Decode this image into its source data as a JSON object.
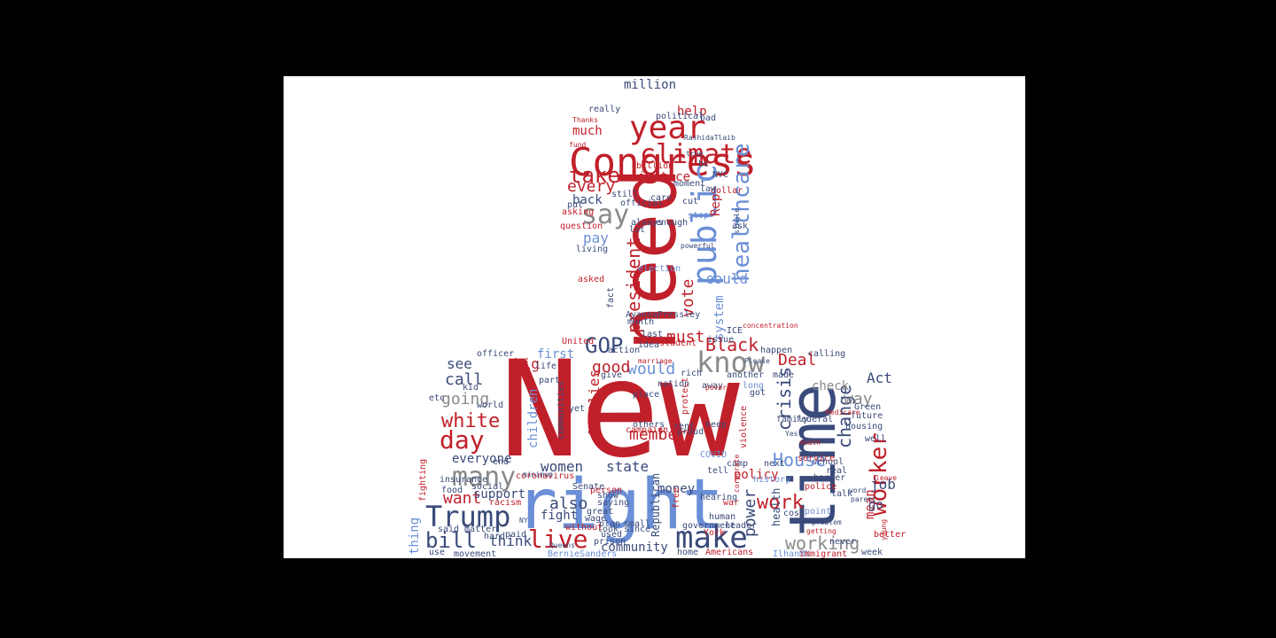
{
  "colors": {
    "background": "#000000",
    "canvas": "#ffffff",
    "red": "#c0202a",
    "blue": "#6a8fd6",
    "navy": "#3a4a7a",
    "gray": "#8a8a8a"
  },
  "words": [
    {
      "text": "New",
      "color": "red"
    },
    {
      "text": "right",
      "color": "blue"
    },
    {
      "text": "need",
      "color": "red"
    },
    {
      "text": "time",
      "color": "navy"
    },
    {
      "text": "Congress",
      "color": "red"
    },
    {
      "text": "year",
      "color": "red"
    },
    {
      "text": "climate",
      "color": "red"
    },
    {
      "text": "public",
      "color": "blue"
    },
    {
      "text": "healthcare",
      "color": "blue"
    },
    {
      "text": "know",
      "color": "gray"
    },
    {
      "text": "make",
      "color": "navy"
    },
    {
      "text": "many",
      "color": "gray"
    },
    {
      "text": "Trump",
      "color": "navy"
    },
    {
      "text": "day",
      "color": "red"
    },
    {
      "text": "live",
      "color": "red"
    },
    {
      "text": "work",
      "color": "red"
    },
    {
      "text": "worker",
      "color": "red"
    },
    {
      "text": "say",
      "color": "gray"
    },
    {
      "text": "take",
      "color": "red"
    },
    {
      "text": "every",
      "color": "red"
    },
    {
      "text": "GOP",
      "color": "navy"
    },
    {
      "text": "Black",
      "color": "red"
    },
    {
      "text": "Deal",
      "color": "red"
    },
    {
      "text": "House",
      "color": "blue"
    },
    {
      "text": "bill",
      "color": "navy"
    },
    {
      "text": "vote",
      "color": "red"
    },
    {
      "text": "president",
      "color": "red"
    },
    {
      "text": "must",
      "color": "red"
    },
    {
      "text": "would",
      "color": "blue"
    },
    {
      "text": "good",
      "color": "red"
    },
    {
      "text": "white",
      "color": "red"
    },
    {
      "text": "member",
      "color": "red"
    },
    {
      "text": "crisis",
      "color": "navy"
    },
    {
      "text": "change",
      "color": "navy"
    },
    {
      "text": "going",
      "color": "gray"
    },
    {
      "text": "call",
      "color": "navy"
    },
    {
      "text": "see",
      "color": "navy"
    },
    {
      "text": "women",
      "color": "navy"
    },
    {
      "text": "state",
      "color": "navy"
    },
    {
      "text": "also",
      "color": "navy"
    },
    {
      "text": "want",
      "color": "red"
    },
    {
      "text": "working",
      "color": "gray"
    },
    {
      "text": "power",
      "color": "navy"
    },
    {
      "text": "way",
      "color": "gray"
    },
    {
      "text": "pay",
      "color": "blue"
    },
    {
      "text": "back",
      "color": "navy"
    },
    {
      "text": "justice",
      "color": "red"
    },
    {
      "text": "much",
      "color": "red"
    },
    {
      "text": "million",
      "color": "navy"
    },
    {
      "text": "help",
      "color": "red"
    },
    {
      "text": "could",
      "color": "blue"
    },
    {
      "text": "system",
      "color": "blue"
    },
    {
      "text": "first",
      "color": "blue"
    },
    {
      "text": "families",
      "color": "red"
    },
    {
      "text": "children",
      "color": "blue"
    },
    {
      "text": "everyone",
      "color": "navy"
    },
    {
      "text": "support",
      "color": "navy"
    },
    {
      "text": "community",
      "color": "navy"
    },
    {
      "text": "think",
      "color": "navy"
    },
    {
      "text": "policy",
      "color": "red"
    },
    {
      "text": "Act",
      "color": "navy"
    },
    {
      "text": "job",
      "color": "navy"
    },
    {
      "text": "mean",
      "color": "red"
    },
    {
      "text": "check",
      "color": "gray"
    },
    {
      "text": "go",
      "color": "navy"
    },
    {
      "text": "money",
      "color": "navy"
    },
    {
      "text": "fight",
      "color": "navy"
    },
    {
      "text": "thing",
      "color": "blue"
    },
    {
      "text": "big",
      "color": "red"
    },
    {
      "text": "Rep",
      "color": "red"
    },
    {
      "text": "ICE",
      "color": "navy"
    },
    {
      "text": "AyannaPressley",
      "color": "navy"
    },
    {
      "text": "United",
      "color": "red"
    },
    {
      "text": "election",
      "color": "blue"
    },
    {
      "text": "coronavirus",
      "color": "red"
    },
    {
      "text": "Republican",
      "color": "navy"
    },
    {
      "text": "health",
      "color": "navy"
    },
    {
      "text": "housing",
      "color": "navy"
    },
    {
      "text": "police",
      "color": "red"
    },
    {
      "text": "COVID",
      "color": "blue"
    },
    {
      "text": "Green",
      "color": "navy"
    },
    {
      "text": "future",
      "color": "navy"
    },
    {
      "text": "history",
      "color": "blue"
    },
    {
      "text": "wage",
      "color": "navy"
    },
    {
      "text": "great",
      "color": "navy"
    },
    {
      "text": "NYC",
      "color": "navy"
    },
    {
      "text": "billion",
      "color": "red"
    },
    {
      "text": "Americans",
      "color": "red"
    },
    {
      "text": "BernieSanders",
      "color": "blue"
    },
    {
      "text": "IlhanMN",
      "color": "blue"
    },
    {
      "text": "immigrant",
      "color": "red"
    },
    {
      "text": "better",
      "color": "red"
    },
    {
      "text": "week",
      "color": "navy"
    },
    {
      "text": "well",
      "color": "navy"
    },
    {
      "text": "talk",
      "color": "navy"
    },
    {
      "text": "never",
      "color": "navy"
    },
    {
      "text": "cost",
      "color": "navy"
    },
    {
      "text": "point",
      "color": "blue"
    },
    {
      "text": "family",
      "color": "navy"
    },
    {
      "text": "federal",
      "color": "navy"
    },
    {
      "text": "school",
      "color": "navy"
    },
    {
      "text": "border",
      "color": "navy"
    },
    {
      "text": "real",
      "color": "navy"
    },
    {
      "text": "service",
      "color": "red"
    },
    {
      "text": "calling",
      "color": "navy"
    },
    {
      "text": "happen",
      "color": "navy"
    },
    {
      "text": "made",
      "color": "navy"
    },
    {
      "text": "next",
      "color": "navy"
    },
    {
      "text": "long",
      "color": "blue"
    },
    {
      "text": "got",
      "color": "navy"
    },
    {
      "text": "keep",
      "color": "navy"
    },
    {
      "text": "tell",
      "color": "navy"
    },
    {
      "text": "proud",
      "color": "navy"
    },
    {
      "text": "away",
      "color": "navy"
    },
    {
      "text": "another",
      "color": "navy"
    },
    {
      "text": "violence",
      "color": "red"
    },
    {
      "text": "rent",
      "color": "navy"
    },
    {
      "text": "protect",
      "color": "red"
    },
    {
      "text": "nation",
      "color": "navy"
    },
    {
      "text": "place",
      "color": "navy"
    },
    {
      "text": "others",
      "color": "navy"
    },
    {
      "text": "free",
      "color": "red"
    },
    {
      "text": "war",
      "color": "red"
    },
    {
      "text": "hearing",
      "color": "navy"
    },
    {
      "text": "camp",
      "color": "navy"
    },
    {
      "text": "government",
      "color": "navy"
    },
    {
      "text": "human",
      "color": "navy"
    },
    {
      "text": "leader",
      "color": "navy"
    },
    {
      "text": "York",
      "color": "red"
    },
    {
      "text": "home",
      "color": "navy"
    },
    {
      "text": "since",
      "color": "navy"
    },
    {
      "text": "plan",
      "color": "navy"
    },
    {
      "text": "used",
      "color": "navy"
    },
    {
      "text": "look",
      "color": "navy"
    },
    {
      "text": "prison",
      "color": "navy"
    },
    {
      "text": "without",
      "color": "red"
    },
    {
      "text": "small",
      "color": "navy"
    },
    {
      "text": "person",
      "color": "red"
    },
    {
      "text": "saying",
      "color": "navy"
    },
    {
      "text": "Senate",
      "color": "navy"
    },
    {
      "text": "show",
      "color": "navy"
    },
    {
      "text": "movement",
      "color": "navy"
    },
    {
      "text": "hard",
      "color": "navy"
    },
    {
      "text": "paid",
      "color": "navy"
    },
    {
      "text": "said",
      "color": "navy"
    },
    {
      "text": "matter",
      "color": "navy"
    },
    {
      "text": "fighting",
      "color": "red"
    },
    {
      "text": "use",
      "color": "navy"
    },
    {
      "text": "food",
      "color": "navy"
    },
    {
      "text": "social",
      "color": "navy"
    },
    {
      "text": "end",
      "color": "navy"
    },
    {
      "text": "kid",
      "color": "navy"
    },
    {
      "text": "etc",
      "color": "navy"
    },
    {
      "text": "world",
      "color": "navy"
    },
    {
      "text": "officer",
      "color": "navy"
    },
    {
      "text": "racism",
      "color": "red"
    },
    {
      "text": "insurance",
      "color": "navy"
    },
    {
      "text": "life",
      "color": "navy"
    },
    {
      "text": "communities",
      "color": "navy"
    },
    {
      "text": "part",
      "color": "navy"
    },
    {
      "text": "campaign",
      "color": "red"
    },
    {
      "text": "action",
      "color": "navy"
    },
    {
      "text": "yet",
      "color": "navy"
    },
    {
      "text": "give",
      "color": "navy"
    },
    {
      "text": "month",
      "color": "navy"
    },
    {
      "text": "last",
      "color": "navy"
    },
    {
      "text": "idea",
      "color": "navy"
    },
    {
      "text": "student",
      "color": "red"
    },
    {
      "text": "rich",
      "color": "navy"
    },
    {
      "text": "issue",
      "color": "navy"
    },
    {
      "text": "fact",
      "color": "navy"
    },
    {
      "text": "asked",
      "color": "red"
    },
    {
      "text": "living",
      "color": "navy"
    },
    {
      "text": "question",
      "color": "red"
    },
    {
      "text": "asking",
      "color": "red"
    },
    {
      "text": "put",
      "color": "navy"
    },
    {
      "text": "still",
      "color": "navy"
    },
    {
      "text": "lot",
      "color": "navy"
    },
    {
      "text": "always",
      "color": "navy"
    },
    {
      "text": "enough",
      "color": "navy"
    },
    {
      "text": "official",
      "color": "navy"
    },
    {
      "text": "care",
      "color": "navy"
    },
    {
      "text": "moment",
      "color": "navy"
    },
    {
      "text": "dollar",
      "color": "red"
    },
    {
      "text": "law",
      "color": "navy"
    },
    {
      "text": "bc",
      "color": "navy"
    },
    {
      "text": "ask",
      "color": "navy"
    },
    {
      "text": "stop",
      "color": "blue"
    },
    {
      "text": "cut",
      "color": "navy"
    },
    {
      "text": "political",
      "color": "navy"
    },
    {
      "text": "bad",
      "color": "navy"
    },
    {
      "text": "really",
      "color": "navy"
    },
    {
      "text": "Thanks",
      "color": "red"
    },
    {
      "text": "RashidaTlaib",
      "color": "navy"
    },
    {
      "text": "powerful",
      "color": "navy"
    },
    {
      "text": "single",
      "color": "navy"
    },
    {
      "text": "Medicare",
      "color": "red"
    },
    {
      "text": "Please",
      "color": "navy"
    },
    {
      "text": "concentration",
      "color": "red"
    },
    {
      "text": "corporate",
      "color": "red"
    },
    {
      "text": "leave",
      "color": "red"
    },
    {
      "text": "parent",
      "color": "navy"
    },
    {
      "text": "word",
      "color": "navy"
    },
    {
      "text": "problem",
      "color": "navy"
    },
    {
      "text": "getting",
      "color": "red"
    },
    {
      "text": "Yes",
      "color": "navy"
    },
    {
      "text": "death",
      "color": "red"
    },
    {
      "text": "fund",
      "color": "red"
    },
    {
      "text": "young",
      "color": "red"
    },
    {
      "text": "poverty",
      "color": "red"
    },
    {
      "text": "marriage",
      "color": "red"
    },
    {
      "text": "Queens",
      "color": "navy"
    },
    {
      "text": "NY",
      "color": "navy"
    },
    {
      "text": "minimum",
      "color": "navy"
    },
    {
      "text": "true",
      "color": "navy"
    }
  ]
}
